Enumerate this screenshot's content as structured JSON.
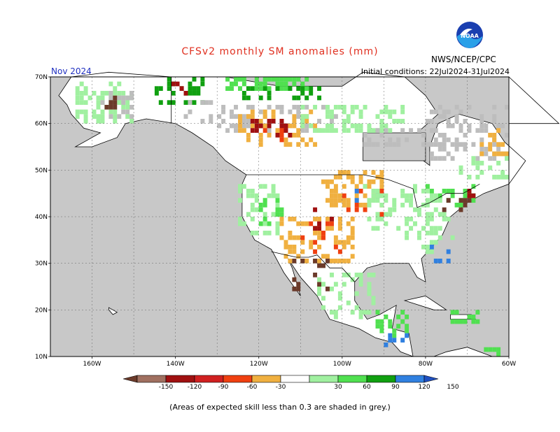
{
  "title": "CFSv2 monthly SM anomalies (mm)",
  "agency": "NWS/NCEP/CPC",
  "logo_text": "NOAA",
  "period": "Nov 2024",
  "initial_conditions": "Initial conditions: 22Jul2024-31Jul2024",
  "note": "(Areas of expected skill less than 0.3 are shaded in grey.)",
  "lat_labels": [
    "70N",
    "60N",
    "50N",
    "40N",
    "30N",
    "20N",
    "10N"
  ],
  "lon_labels": [
    "160W",
    "140W",
    "120W",
    "100W",
    "80W",
    "60W"
  ],
  "legend": {
    "ticks": [
      "-150",
      "-120",
      "-90",
      "-60",
      "-30",
      "30",
      "60",
      "90",
      "120",
      "150"
    ],
    "colors": [
      "#6b3a2a",
      "#a07060",
      "#a01010",
      "#d02020",
      "#f04010",
      "#f0b040",
      "#ffffff",
      "#a0f0a0",
      "#50e050",
      "#10a010",
      "#3080e0",
      "#2050c0"
    ]
  },
  "colors": {
    "ocean": "#c8c8c8",
    "land": "#ffffff",
    "skill_grey": "#bdbdbd",
    "title": "#e03020",
    "period": "#2030c0"
  }
}
